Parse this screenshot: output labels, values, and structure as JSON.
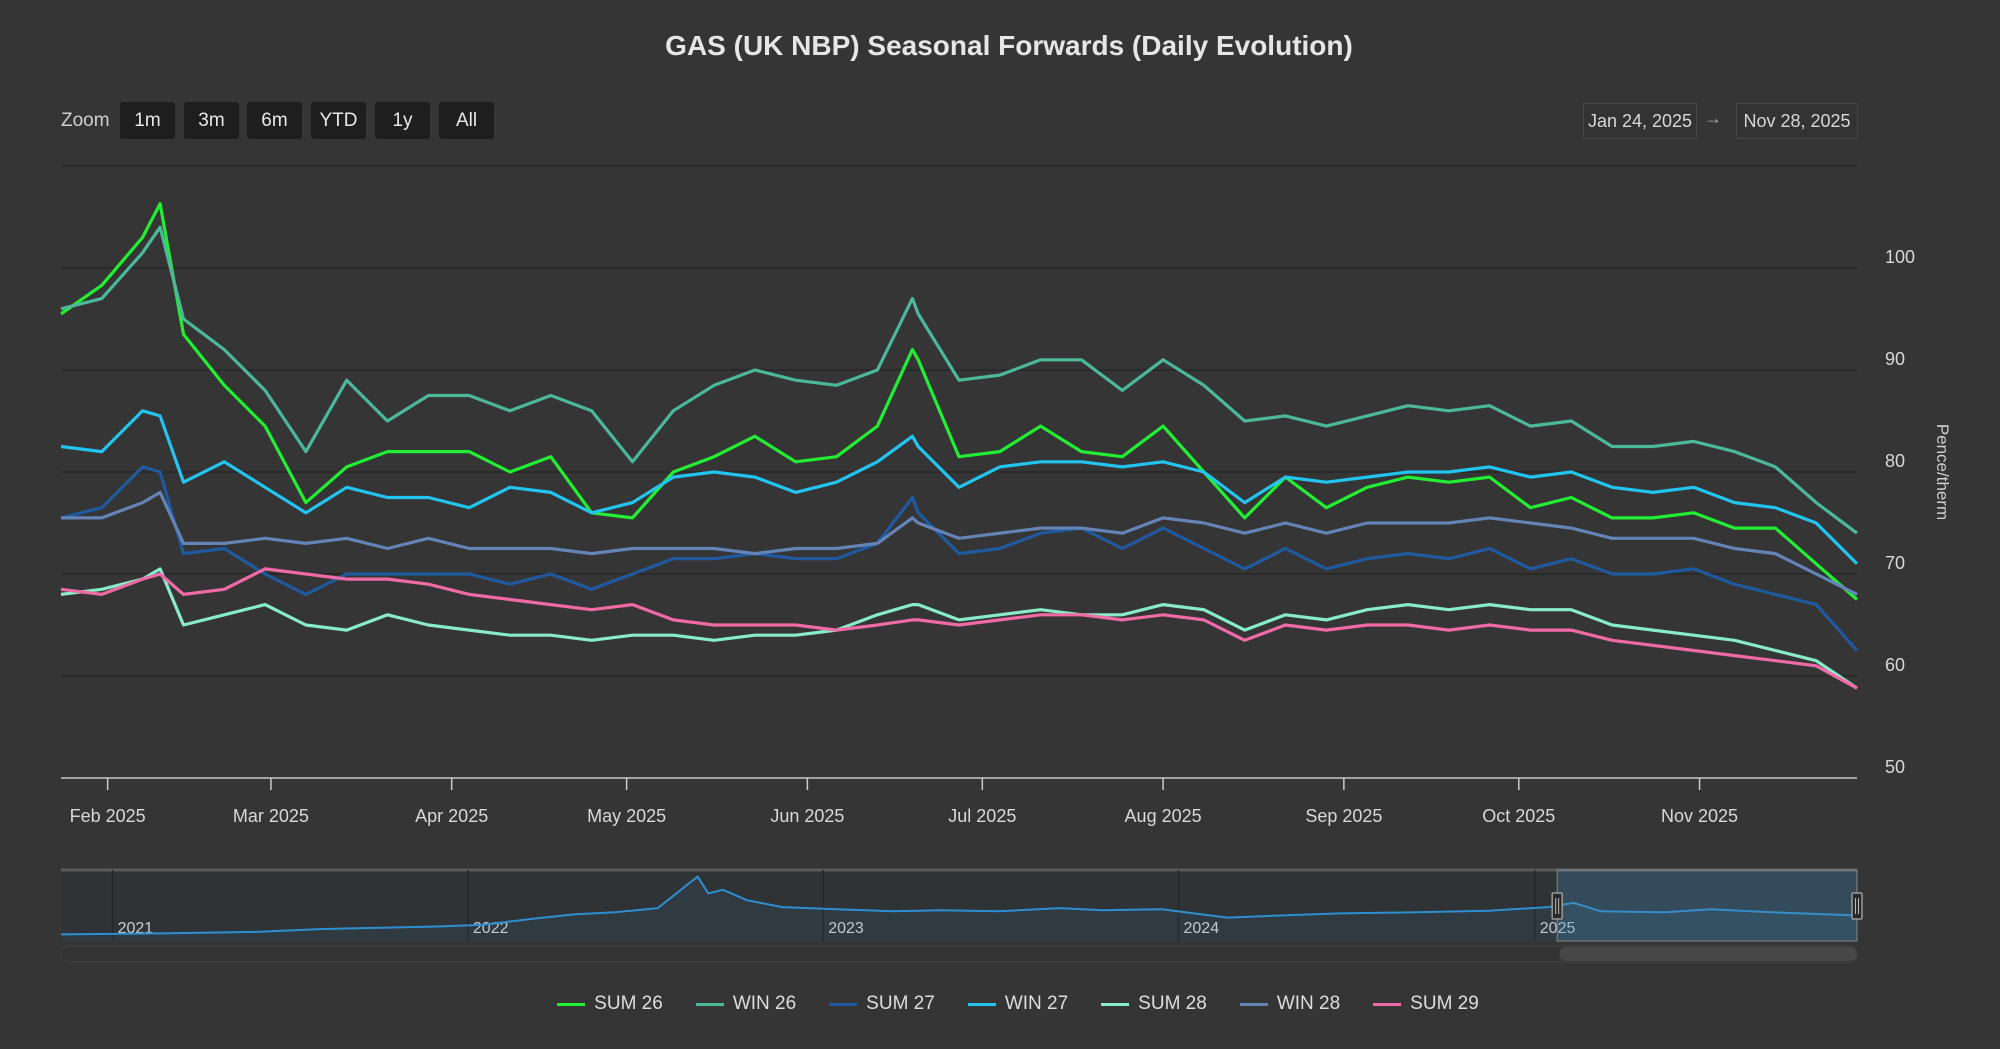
{
  "chart_data": {
    "type": "line",
    "title": "GAS (UK NBP) Seasonal Forwards (Daily Evolution)",
    "ylabel": "Pence/therm",
    "xlabel": "",
    "ylim": [
      50,
      110
    ],
    "yticks": [
      50,
      60,
      70,
      80,
      90,
      100
    ],
    "grid": true,
    "legend": "bottom",
    "xticks": [
      {
        "date": "2025-02-01",
        "label": "Feb 2025"
      },
      {
        "date": "2025-03-01",
        "label": "Mar 2025"
      },
      {
        "date": "2025-04-01",
        "label": "Apr 2025"
      },
      {
        "date": "2025-05-01",
        "label": "May 2025"
      },
      {
        "date": "2025-06-01",
        "label": "Jun 2025"
      },
      {
        "date": "2025-07-01",
        "label": "Jul 2025"
      },
      {
        "date": "2025-08-01",
        "label": "Aug 2025"
      },
      {
        "date": "2025-09-01",
        "label": "Sep 2025"
      },
      {
        "date": "2025-10-01",
        "label": "Oct 2025"
      },
      {
        "date": "2025-11-01",
        "label": "Nov 2025"
      }
    ],
    "x": [
      "2025-01-24",
      "2025-01-31",
      "2025-02-07",
      "2025-02-10",
      "2025-02-14",
      "2025-02-21",
      "2025-02-28",
      "2025-03-07",
      "2025-03-14",
      "2025-03-21",
      "2025-03-28",
      "2025-04-04",
      "2025-04-11",
      "2025-04-18",
      "2025-04-25",
      "2025-05-02",
      "2025-05-09",
      "2025-05-16",
      "2025-05-23",
      "2025-05-30",
      "2025-06-06",
      "2025-06-13",
      "2025-06-19",
      "2025-06-20",
      "2025-06-27",
      "2025-07-04",
      "2025-07-11",
      "2025-07-18",
      "2025-07-25",
      "2025-08-01",
      "2025-08-08",
      "2025-08-15",
      "2025-08-22",
      "2025-08-29",
      "2025-09-05",
      "2025-09-12",
      "2025-09-19",
      "2025-09-26",
      "2025-10-03",
      "2025-10-10",
      "2025-10-17",
      "2025-10-24",
      "2025-10-31",
      "2025-11-07",
      "2025-11-14",
      "2025-11-21",
      "2025-11-28"
    ],
    "series": [
      {
        "name": "SUM 26",
        "color": "#22ee33",
        "values": [
          95.5,
          98.3,
          103,
          106.3,
          93.5,
          88.5,
          84.5,
          77,
          80.5,
          82,
          82,
          82,
          80,
          81.5,
          76,
          75.5,
          80,
          81.5,
          83.5,
          81,
          81.5,
          84.5,
          92,
          91,
          81.5,
          82,
          84.5,
          82,
          81.5,
          84.5,
          80,
          75.5,
          79.5,
          76.5,
          78.5,
          79.5,
          79,
          79.5,
          76.5,
          77.5,
          75.5,
          75.5,
          76,
          74.5,
          74.5,
          71,
          67.5
        ]
      },
      {
        "name": "WIN 26",
        "color": "#4cb89a",
        "values": [
          96,
          97,
          101.5,
          104,
          95,
          92,
          88,
          82,
          89,
          85,
          87.5,
          87.5,
          86,
          87.5,
          86,
          81,
          86,
          88.5,
          90,
          89,
          88.5,
          90,
          97,
          95.5,
          89,
          89.5,
          91,
          91,
          88,
          91,
          88.5,
          85,
          85.5,
          84.5,
          85.5,
          86.5,
          86,
          86.5,
          84.5,
          85,
          82.5,
          82.5,
          83,
          82,
          80.5,
          77,
          74
        ]
      },
      {
        "name": "SUM 27",
        "color": "#1f5aa0",
        "values": [
          75.5,
          76.5,
          80.5,
          80,
          72,
          72.5,
          70,
          68,
          70,
          70,
          70,
          70,
          69,
          70,
          68.5,
          70,
          71.5,
          71.5,
          72,
          71.5,
          71.5,
          73,
          77.5,
          76,
          72,
          72.5,
          74,
          74.5,
          72.5,
          74.5,
          72.5,
          70.5,
          72.5,
          70.5,
          71.5,
          72,
          71.5,
          72.5,
          70.5,
          71.5,
          70,
          70,
          70.5,
          69,
          68,
          67,
          62.5
        ]
      },
      {
        "name": "WIN 27",
        "color": "#22c4f0",
        "values": [
          82.5,
          82,
          86,
          85.5,
          79,
          81,
          78.5,
          76,
          78.5,
          77.5,
          77.5,
          76.5,
          78.5,
          78,
          76,
          77,
          79.5,
          80,
          79.5,
          78,
          79,
          81,
          83.5,
          82.5,
          78.5,
          80.5,
          81,
          81,
          80.5,
          81,
          80,
          77,
          79.5,
          79,
          79.5,
          80,
          80,
          80.5,
          79.5,
          80,
          78.5,
          78,
          78.5,
          77,
          76.5,
          75,
          71
        ]
      },
      {
        "name": "SUM 28",
        "color": "#88ecc8",
        "values": [
          68,
          68.5,
          69.5,
          70.5,
          65,
          66,
          67,
          65,
          64.5,
          66,
          65,
          64.5,
          64,
          64,
          63.5,
          64,
          64,
          63.5,
          64,
          64,
          64.5,
          66,
          67,
          67,
          65.5,
          66,
          66.5,
          66,
          66,
          67,
          66.5,
          64.5,
          66,
          65.5,
          66.5,
          67,
          66.5,
          67,
          66.5,
          66.5,
          65,
          64.5,
          64,
          63.5,
          62.5,
          61.5,
          58.8
        ]
      },
      {
        "name": "WIN 28",
        "color": "#6484b8",
        "values": [
          75.5,
          75.5,
          77,
          78,
          73,
          73,
          73.5,
          73,
          73.5,
          72.5,
          73.5,
          72.5,
          72.5,
          72.5,
          72,
          72.5,
          72.5,
          72.5,
          72,
          72.5,
          72.5,
          73,
          75.5,
          75,
          73.5,
          74,
          74.5,
          74.5,
          74,
          75.5,
          75,
          74,
          75,
          74,
          75,
          75,
          75,
          75.5,
          75,
          74.5,
          73.5,
          73.5,
          73.5,
          72.5,
          72,
          70,
          68
        ]
      },
      {
        "name": "SUM 29",
        "color": "#f06aa8",
        "values": [
          68.5,
          68,
          69.5,
          70,
          68,
          68.5,
          70.5,
          70,
          69.5,
          69.5,
          69,
          68,
          67.5,
          67,
          66.5,
          67,
          65.5,
          65,
          65,
          65,
          64.5,
          65,
          65.5,
          65.5,
          65,
          65.5,
          66,
          66,
          65.5,
          66,
          65.5,
          63.5,
          65,
          64.5,
          65,
          65,
          64.5,
          65,
          64.5,
          64.5,
          63.5,
          63,
          62.5,
          62,
          61.5,
          61,
          58.8
        ]
      }
    ]
  },
  "toolbar": {
    "zoom_label": "Zoom",
    "buttons": [
      "1m",
      "3m",
      "6m",
      "YTD",
      "1y",
      "All"
    ],
    "from_date": "Jan 24, 2025",
    "arrow": "→",
    "to_date": "Nov 28, 2025"
  },
  "navigator": {
    "color": "#2e8fd0",
    "year_labels": [
      {
        "date": "2021-01-01",
        "label": "2021"
      },
      {
        "date": "2022-01-01",
        "label": "2022"
      },
      {
        "date": "2023-01-01",
        "label": "2023"
      },
      {
        "date": "2024-01-01",
        "label": "2024"
      },
      {
        "date": "2025-01-01",
        "label": "2025"
      }
    ],
    "x": [
      "2020-11-09",
      "2021-03-01",
      "2021-06-01",
      "2021-08-01",
      "2021-09-15",
      "2021-12-01",
      "2022-01-15",
      "2022-03-10",
      "2022-04-20",
      "2022-06-01",
      "2022-07-15",
      "2022-08-25",
      "2022-09-05",
      "2022-09-20",
      "2022-10-15",
      "2022-11-20",
      "2023-01-15",
      "2023-03-15",
      "2023-05-01",
      "2023-07-01",
      "2023-09-01",
      "2023-10-15",
      "2023-12-15",
      "2024-02-20",
      "2024-04-15",
      "2024-06-15",
      "2024-09-01",
      "2024-11-15",
      "2025-01-15",
      "2025-02-10",
      "2025-03-10",
      "2025-05-15",
      "2025-07-01",
      "2025-09-01",
      "2025-11-28"
    ],
    "values": [
      40,
      42,
      45,
      50,
      52,
      55,
      58,
      70,
      78,
      82,
      90,
      150,
      118,
      125,
      105,
      92,
      88,
      84,
      86,
      84,
      90,
      86,
      88,
      72,
      76,
      80,
      82,
      85,
      92,
      100,
      84,
      82,
      88,
      82,
      76
    ],
    "selected_range": [
      "2025-01-24",
      "2025-11-28"
    ]
  }
}
